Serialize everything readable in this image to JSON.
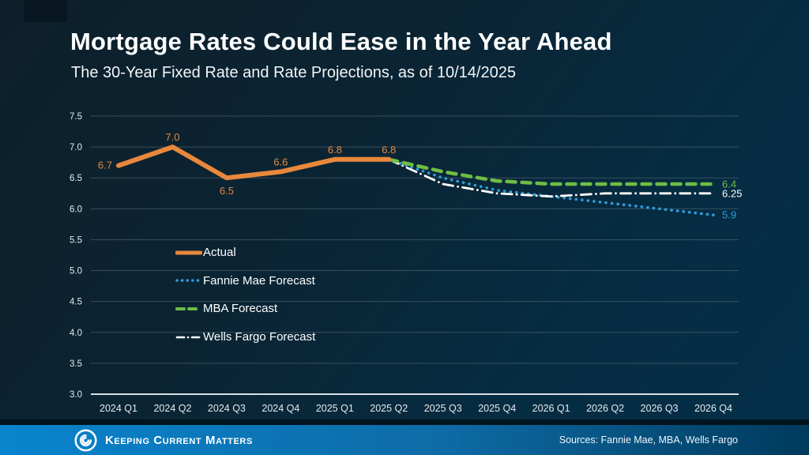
{
  "footer": {
    "brand": "Keeping Current Matters",
    "logo_icon": "kcm-swirl-logo",
    "sources": "Sources: Fannie Mae, MBA, Wells Fargo"
  },
  "colors": {
    "background_top_left": "#0d1f2a",
    "background_bottom_right": "#04304a",
    "accent_orange": "#e8883c",
    "accent_blue": "#2d9ed9",
    "accent_green": "#6ebe45",
    "white": "#ffffff",
    "gridline": "#5f707b",
    "axis_line": "#d9e0e4",
    "footer_bar_left": "#0884cd",
    "footer_bar_right": "#003a5c"
  },
  "chart_data": {
    "type": "line",
    "title": "Mortgage Rates Could Ease in the Year Ahead",
    "subtitle": "The 30-Year Fixed Rate and Rate Projections, as of 10/14/2025",
    "xlabel": "",
    "ylabel": "",
    "ylim": [
      3.0,
      7.5
    ],
    "ytick_step": 0.5,
    "grid": true,
    "legend_position": "inside-left",
    "categories": [
      "2024 Q1",
      "2024 Q2",
      "2024 Q3",
      "2024 Q4",
      "2025 Q1",
      "2025 Q2",
      "2025 Q3",
      "2025 Q4",
      "2026 Q1",
      "2026 Q2",
      "2026 Q3",
      "2026 Q4"
    ],
    "series": [
      {
        "name": "Actual",
        "color": "#e8883c",
        "style": "solid",
        "values": [
          6.7,
          7.0,
          6.5,
          6.6,
          6.8,
          6.8,
          null,
          null,
          null,
          null,
          null,
          null
        ],
        "labels": [
          {
            "text": "6.7",
            "placement": "left"
          },
          {
            "text": "7.0",
            "placement": "above"
          },
          {
            "text": "6.5",
            "placement": "below"
          },
          {
            "text": "6.6",
            "placement": "above"
          },
          {
            "text": "6.8",
            "placement": "above"
          },
          {
            "text": "6.8",
            "placement": "above"
          }
        ]
      },
      {
        "name": "Fannie Mae Forecast",
        "color": "#2d9ed9",
        "style": "dotted",
        "values": [
          null,
          null,
          null,
          null,
          null,
          6.8,
          6.5,
          6.3,
          6.2,
          6.1,
          6.0,
          5.9
        ],
        "end_label": "5.9"
      },
      {
        "name": "MBA Forecast",
        "color": "#6ebe45",
        "style": "dashed",
        "values": [
          null,
          null,
          null,
          null,
          null,
          6.8,
          6.6,
          6.45,
          6.4,
          6.4,
          6.4,
          6.4
        ],
        "end_label": "6.4"
      },
      {
        "name": "Wells Fargo Forecast",
        "color": "#ffffff",
        "style": "dashdot",
        "values": [
          null,
          null,
          null,
          null,
          null,
          6.8,
          6.4,
          6.25,
          6.2,
          6.25,
          6.25,
          6.25
        ],
        "end_label": "6.25"
      }
    ]
  }
}
